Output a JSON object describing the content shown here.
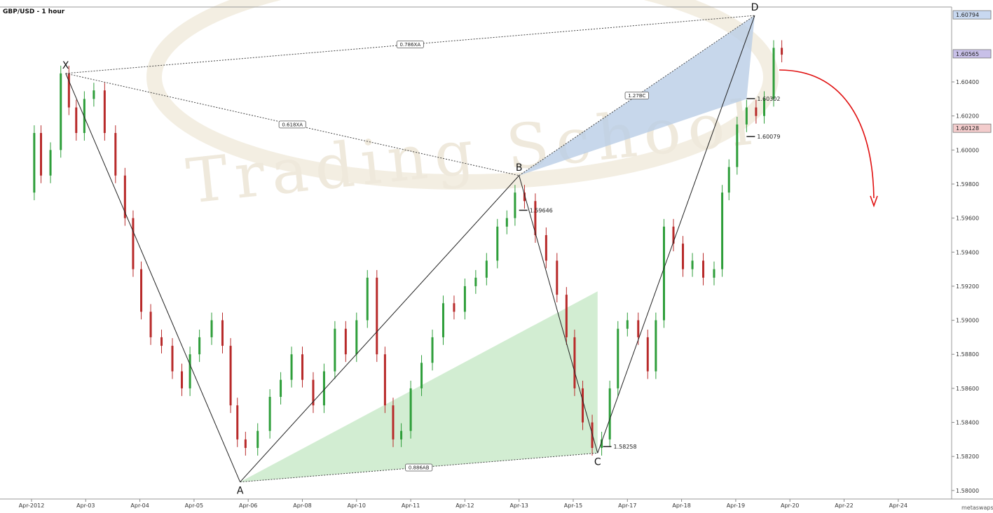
{
  "chart_data": {
    "type": "candlestick",
    "title": "GBP/USD - 1 hour",
    "watermark": "Trading School",
    "source": "metaswaps.com",
    "ylim": [
      1.5795,
      1.6084
    ],
    "y_ticks": [
      "1.58000",
      "1.58200",
      "1.58400",
      "1.58600",
      "1.58800",
      "1.59000",
      "1.59200",
      "1.59400",
      "1.59600",
      "1.59800",
      "1.60000",
      "1.60200",
      "1.60400"
    ],
    "price_tags": [
      {
        "value": 1.60794,
        "text": "1.60794",
        "color": "#c8d8f0"
      },
      {
        "value": 1.60565,
        "text": "1.60565",
        "color": "#c8c0e8"
      },
      {
        "value": 1.60128,
        "text": "1.60128",
        "color": "#f3cccc"
      }
    ],
    "x_ticks": [
      {
        "t": 0,
        "label": "Apr-2012"
      },
      {
        "t": 1,
        "label": "Apr-03"
      },
      {
        "t": 2,
        "label": "Apr-04"
      },
      {
        "t": 3,
        "label": "Apr-05"
      },
      {
        "t": 4,
        "label": "Apr-06"
      },
      {
        "t": 5,
        "label": "Apr-08"
      },
      {
        "t": 6,
        "label": "Apr-10"
      },
      {
        "t": 7,
        "label": "Apr-11"
      },
      {
        "t": 8,
        "label": "Apr-12"
      },
      {
        "t": 9,
        "label": "Apr-13"
      },
      {
        "t": 10,
        "label": "Apr-15"
      },
      {
        "t": 11,
        "label": "Apr-17"
      },
      {
        "t": 12,
        "label": "Apr-18"
      },
      {
        "t": 13,
        "label": "Apr-19"
      },
      {
        "t": 14,
        "label": "Apr-20"
      },
      {
        "t": 15,
        "label": "Apr-22"
      },
      {
        "t": 16,
        "label": "Apr-24"
      }
    ],
    "pattern_points": [
      {
        "name": "X",
        "t": 0.63,
        "y": 1.6045
      },
      {
        "name": "A",
        "t": 3.85,
        "y": 1.5805
      },
      {
        "name": "B",
        "t": 9.0,
        "y": 1.5985
      },
      {
        "name": "C",
        "t": 10.45,
        "y": 1.5822
      },
      {
        "name": "D",
        "t": 13.35,
        "y": 1.6079
      }
    ],
    "ratios": [
      {
        "text": "0.786XA",
        "from": "X",
        "to": "D"
      },
      {
        "text": "0.618XA",
        "from": "X",
        "to": "B"
      },
      {
        "text": "0.886AB",
        "from": "A",
        "to": "C"
      },
      {
        "text": "1.27BC",
        "from": "B",
        "to": "D"
      }
    ],
    "level_labels": [
      {
        "text": "1.59646",
        "t": 9.0,
        "y": 1.59646
      },
      {
        "text": "1.58258",
        "t": 10.55,
        "y": 1.58258
      },
      {
        "text": "1.60302",
        "t": 13.2,
        "y": 1.60302
      },
      {
        "text": "1.60079",
        "t": 13.2,
        "y": 1.60079
      }
    ],
    "price_path": [
      [
        0.0,
        1.5975
      ],
      [
        0.1,
        1.601
      ],
      [
        0.25,
        1.5985
      ],
      [
        0.45,
        1.6
      ],
      [
        0.63,
        1.6045
      ],
      [
        0.75,
        1.6025
      ],
      [
        0.9,
        1.601
      ],
      [
        1.05,
        1.603
      ],
      [
        1.25,
        1.6035
      ],
      [
        1.45,
        1.601
      ],
      [
        1.65,
        1.5985
      ],
      [
        1.8,
        1.596
      ],
      [
        1.95,
        1.593
      ],
      [
        2.1,
        1.5905
      ],
      [
        2.3,
        1.589
      ],
      [
        2.5,
        1.5885
      ],
      [
        2.7,
        1.587
      ],
      [
        2.85,
        1.586
      ],
      [
        3.0,
        1.588
      ],
      [
        3.2,
        1.589
      ],
      [
        3.45,
        1.59
      ],
      [
        3.6,
        1.5885
      ],
      [
        3.75,
        1.585
      ],
      [
        3.85,
        1.583
      ],
      [
        4.05,
        1.5825
      ],
      [
        4.3,
        1.5835
      ],
      [
        4.5,
        1.5855
      ],
      [
        4.7,
        1.5865
      ],
      [
        4.9,
        1.588
      ],
      [
        5.1,
        1.5865
      ],
      [
        5.3,
        1.585
      ],
      [
        5.5,
        1.587
      ],
      [
        5.7,
        1.5895
      ],
      [
        5.9,
        1.588
      ],
      [
        6.1,
        1.59
      ],
      [
        6.3,
        1.5925
      ],
      [
        6.45,
        1.588
      ],
      [
        6.6,
        1.585
      ],
      [
        6.75,
        1.583
      ],
      [
        6.9,
        1.5835
      ],
      [
        7.1,
        1.586
      ],
      [
        7.3,
        1.5875
      ],
      [
        7.5,
        1.589
      ],
      [
        7.7,
        1.591
      ],
      [
        7.9,
        1.5905
      ],
      [
        8.1,
        1.592
      ],
      [
        8.3,
        1.5925
      ],
      [
        8.5,
        1.5935
      ],
      [
        8.7,
        1.5955
      ],
      [
        8.85,
        1.596
      ],
      [
        9.0,
        1.5975
      ],
      [
        9.2,
        1.597
      ],
      [
        9.4,
        1.595
      ],
      [
        9.6,
        1.5935
      ],
      [
        9.8,
        1.5915
      ],
      [
        9.95,
        1.589
      ],
      [
        10.1,
        1.586
      ],
      [
        10.25,
        1.584
      ],
      [
        10.45,
        1.5825
      ],
      [
        10.6,
        1.583
      ],
      [
        10.75,
        1.586
      ],
      [
        10.9,
        1.5895
      ],
      [
        11.1,
        1.59
      ],
      [
        11.3,
        1.589
      ],
      [
        11.45,
        1.587
      ],
      [
        11.6,
        1.59
      ],
      [
        11.75,
        1.5955
      ],
      [
        11.95,
        1.5945
      ],
      [
        12.1,
        1.593
      ],
      [
        12.3,
        1.5935
      ],
      [
        12.5,
        1.5925
      ],
      [
        12.7,
        1.593
      ],
      [
        12.8,
        1.5975
      ],
      [
        12.95,
        1.599
      ],
      [
        13.1,
        1.6015
      ],
      [
        13.3,
        1.6025
      ],
      [
        13.45,
        1.602
      ],
      [
        13.6,
        1.603
      ],
      [
        13.8,
        1.606
      ],
      [
        13.9,
        1.6056
      ]
    ]
  }
}
